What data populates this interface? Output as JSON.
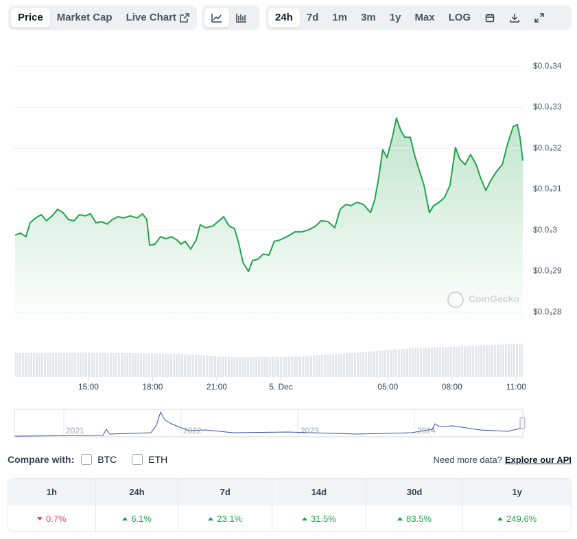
{
  "toolbar": {
    "views": [
      "Price",
      "Market Cap",
      "Live Chart"
    ],
    "ranges": [
      "24h",
      "7d",
      "1m",
      "3m",
      "1y",
      "Max",
      "LOG"
    ]
  },
  "chart_data": {
    "type": "line",
    "color": "#1fa24a",
    "watermark": "CoinGecko",
    "x": [
      11.57,
      11.82,
      12.08,
      12.27,
      12.53,
      12.79,
      13.04,
      13.3,
      13.56,
      13.81,
      14.07,
      14.33,
      14.58,
      14.84,
      15.1,
      15.35,
      15.61,
      15.87,
      16.12,
      16.38,
      16.64,
      16.96,
      17.28,
      17.53,
      17.73,
      17.86,
      18.11,
      18.37,
      18.63,
      18.88,
      19.14,
      19.33,
      19.52,
      19.78,
      20.04,
      20.23,
      20.49,
      20.81,
      21.06,
      21.32,
      21.58,
      21.83,
      22.03,
      22.22,
      22.48,
      22.67,
      22.92,
      23.18,
      23.44,
      23.69,
      23.95,
      24.27,
      24.66,
      24.98,
      25.3,
      25.62,
      25.88,
      26.2,
      26.52,
      26.77,
      27.03,
      27.29,
      27.54,
      27.86,
      28.19,
      28.38,
      28.57,
      28.76,
      28.96,
      29.21,
      29.4,
      29.6,
      29.79,
      30.05,
      30.24,
      30.43,
      30.69,
      30.94,
      31.14,
      31.39,
      31.65,
      31.91,
      32.16,
      32.36,
      32.61,
      32.87,
      33.13,
      33.32,
      33.58,
      33.83,
      34.09,
      34.35,
      34.6,
      34.86,
      35.05,
      35.18,
      35.31
    ],
    "values": [
      2.988e-05,
      2.993e-05,
      2.984e-05,
      3.018e-05,
      3.03e-05,
      3.038e-05,
      3.023e-05,
      3.035e-05,
      3.051e-05,
      3.043e-05,
      3.026e-05,
      3.023e-05,
      3.038e-05,
      3.035e-05,
      3.04e-05,
      3.018e-05,
      3.021e-05,
      3.015e-05,
      3.026e-05,
      3.033e-05,
      3.03e-05,
      3.035e-05,
      3.03e-05,
      3.04e-05,
      3.026e-05,
      2.963e-05,
      2.966e-05,
      2.984e-05,
      2.979e-05,
      2.984e-05,
      2.976e-05,
      2.966e-05,
      2.973e-05,
      2.954e-05,
      2.976e-05,
      3.013e-05,
      3.006e-05,
      3.01e-05,
      3.021e-05,
      3.033e-05,
      3.01e-05,
      3.004e-05,
      2.968e-05,
      2.922e-05,
      2.899e-05,
      2.926e-05,
      2.929e-05,
      2.942e-05,
      2.939e-05,
      2.973e-05,
      2.976e-05,
      2.984e-05,
      2.996e-05,
      2.996e-05,
      3.001e-05,
      3.01e-05,
      3.023e-05,
      3.021e-05,
      3.006e-05,
      3.051e-05,
      3.063e-05,
      3.06e-05,
      3.068e-05,
      3.063e-05,
      3.043e-05,
      3.073e-05,
      3.127e-05,
      3.197e-05,
      3.177e-05,
      3.227e-05,
      3.274e-05,
      3.244e-05,
      3.227e-05,
      3.227e-05,
      3.185e-05,
      3.152e-05,
      3.11e-05,
      3.043e-05,
      3.06e-05,
      3.068e-05,
      3.08e-05,
      3.11e-05,
      3.202e-05,
      3.174e-05,
      3.16e-05,
      3.185e-05,
      3.16e-05,
      3.13e-05,
      3.097e-05,
      3.123e-05,
      3.144e-05,
      3.16e-05,
      3.211e-05,
      3.253e-05,
      3.258e-05,
      3.227e-05,
      3.17e-05
    ],
    "xlim": [
      11.57,
      35.31
    ],
    "xticks": [
      {
        "value": 15,
        "label": "15:00"
      },
      {
        "value": 18,
        "label": "18:00"
      },
      {
        "value": 21,
        "label": "21:00"
      },
      {
        "value": 24,
        "label": "5. Dec"
      },
      {
        "value": 29,
        "label": "05:00"
      },
      {
        "value": 32,
        "label": "08:00"
      },
      {
        "value": 35,
        "label": "11:00"
      }
    ],
    "ylim": [
      2.77e-05,
      3.45e-05
    ],
    "yticks": [
      {
        "value": 3.4e-05,
        "label": "$0.0₄34"
      },
      {
        "value": 3.3e-05,
        "label": "$0.0₄33"
      },
      {
        "value": 3.2e-05,
        "label": "$0.0₄32"
      },
      {
        "value": 3.1e-05,
        "label": "$0.0₄31"
      },
      {
        "value": 3e-05,
        "label": "$0.0₄3"
      },
      {
        "value": 2.9e-05,
        "label": "$0.0₄29"
      },
      {
        "value": 2.8e-05,
        "label": "$0.0₄28"
      }
    ],
    "grid": true,
    "navigator_labels": [
      "2021",
      "2022",
      "2023",
      "2024"
    ]
  },
  "compare": {
    "label": "Compare with:",
    "options": [
      "BTC",
      "ETH"
    ],
    "more": "Need more data?",
    "link": "Explore our API"
  },
  "table": {
    "headers": [
      "1h",
      "24h",
      "7d",
      "14d",
      "30d",
      "1y"
    ],
    "rows": [
      [
        {
          "label": "0.7%",
          "direction": "down"
        },
        {
          "label": "6.1%",
          "direction": "up"
        },
        {
          "label": "23.1%",
          "direction": "up"
        },
        {
          "label": "31.5%",
          "direction": "up"
        },
        {
          "label": "83.5%",
          "direction": "up"
        },
        {
          "label": "249.6%",
          "direction": "up"
        }
      ]
    ]
  }
}
